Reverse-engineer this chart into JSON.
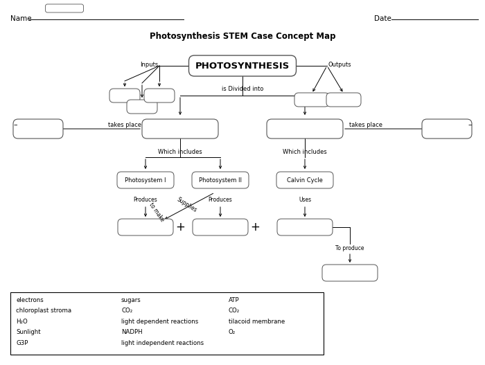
{
  "title": "Photosynthesis STEM Case Concept Map",
  "name_label": "Name",
  "date_label": "Date",
  "bg_color": "#ffffff",
  "legend_items_col1": [
    "electrons",
    "chloroplast stroma",
    "H₂O",
    "Sunlight",
    "G3P"
  ],
  "legend_items_col2": [
    "sugars",
    "CO₂",
    "light dependent reactions",
    "NADPH",
    "light independent reactions"
  ],
  "legend_items_col3": [
    "ATP",
    "CO₂",
    "tilacoid membrane",
    "O₂"
  ]
}
